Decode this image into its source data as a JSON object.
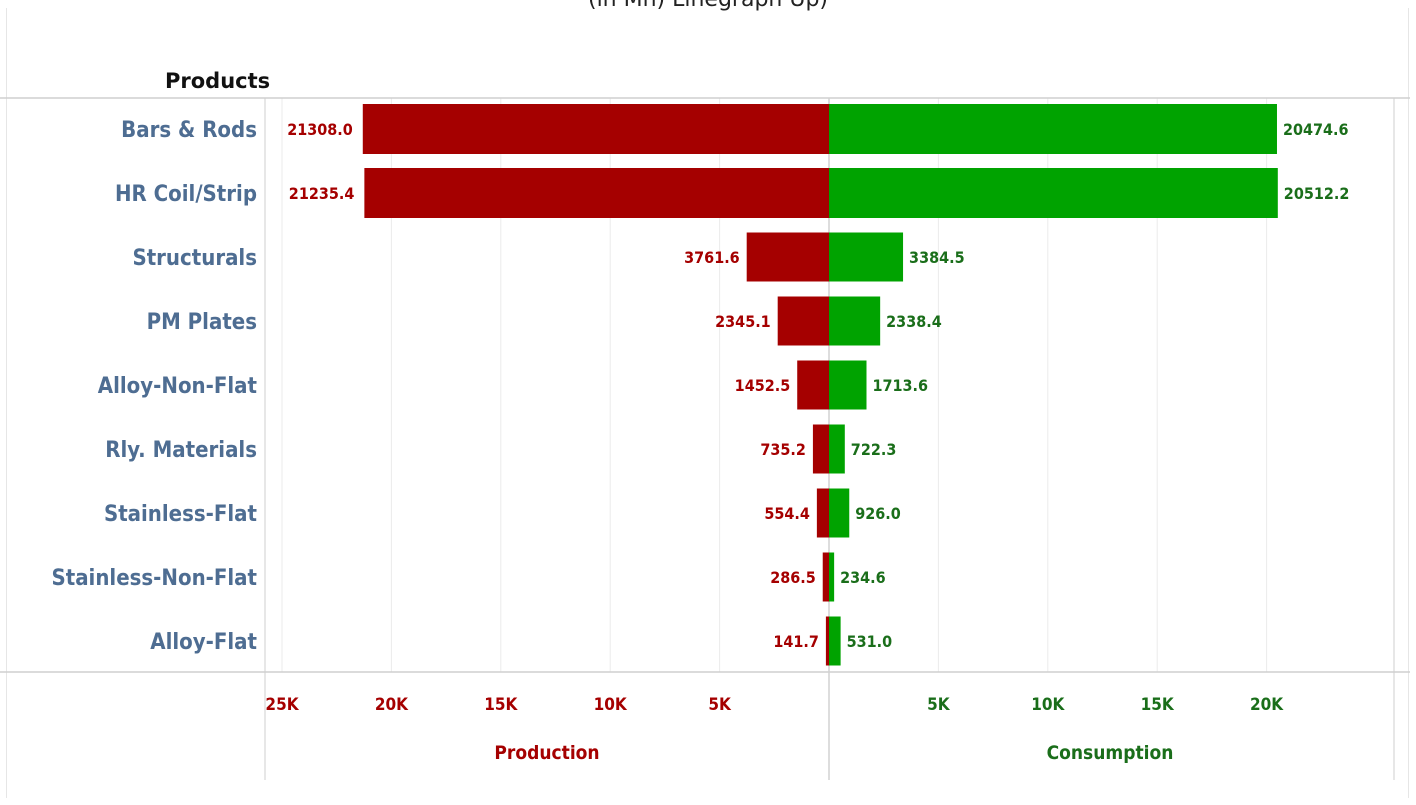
{
  "chart_title_fragment": "(in Mn) Linegraph Up)",
  "colors": {
    "production": "#a50000",
    "consumption": "#00a300",
    "category_label": "#4e6d92",
    "gridline": "#ebebeb",
    "axis_line": "#cfcfcf"
  },
  "chart_data": {
    "type": "bar",
    "orientation": "horizontal",
    "layout": "diverging",
    "rows_header": "Products",
    "categories": [
      "Bars & Rods",
      "HR Coil/Strip",
      "Structurals",
      "PM Plates",
      "Alloy-Non-Flat",
      "Rly. Materials",
      "Stainless-Flat",
      "Stainless-Non-Flat",
      "Alloy-Flat"
    ],
    "series": [
      {
        "name": "Production",
        "side": "left",
        "values": [
          21308.0,
          21235.4,
          3761.6,
          2345.1,
          1452.5,
          735.2,
          554.4,
          286.5,
          141.7
        ],
        "labels": [
          "21308.0",
          "21235.4",
          "3761.6",
          "2345.1",
          "1452.5",
          "735.2",
          "554.4",
          "286.5",
          "141.7"
        ]
      },
      {
        "name": "Consumption",
        "side": "right",
        "values": [
          20474.6,
          20512.2,
          3384.5,
          2338.4,
          1713.6,
          722.3,
          926.0,
          234.6,
          531.0
        ],
        "labels": [
          "20474.6",
          "20512.2",
          "3384.5",
          "2338.4",
          "1713.6",
          "722.3",
          "926.0",
          "234.6",
          "531.0"
        ]
      }
    ],
    "left_axis": {
      "title": "Production",
      "ticks": [
        25000,
        20000,
        15000,
        10000,
        5000
      ],
      "tick_labels": [
        "25K",
        "20K",
        "15K",
        "10K",
        "5K"
      ],
      "range": [
        0,
        25000
      ],
      "reversed": true
    },
    "right_axis": {
      "title": "Consumption",
      "ticks": [
        5000,
        10000,
        15000,
        20000
      ],
      "tick_labels": [
        "5K",
        "10K",
        "15K",
        "20K"
      ],
      "range": [
        0,
        25000
      ]
    },
    "grid": true,
    "legend": "none"
  }
}
